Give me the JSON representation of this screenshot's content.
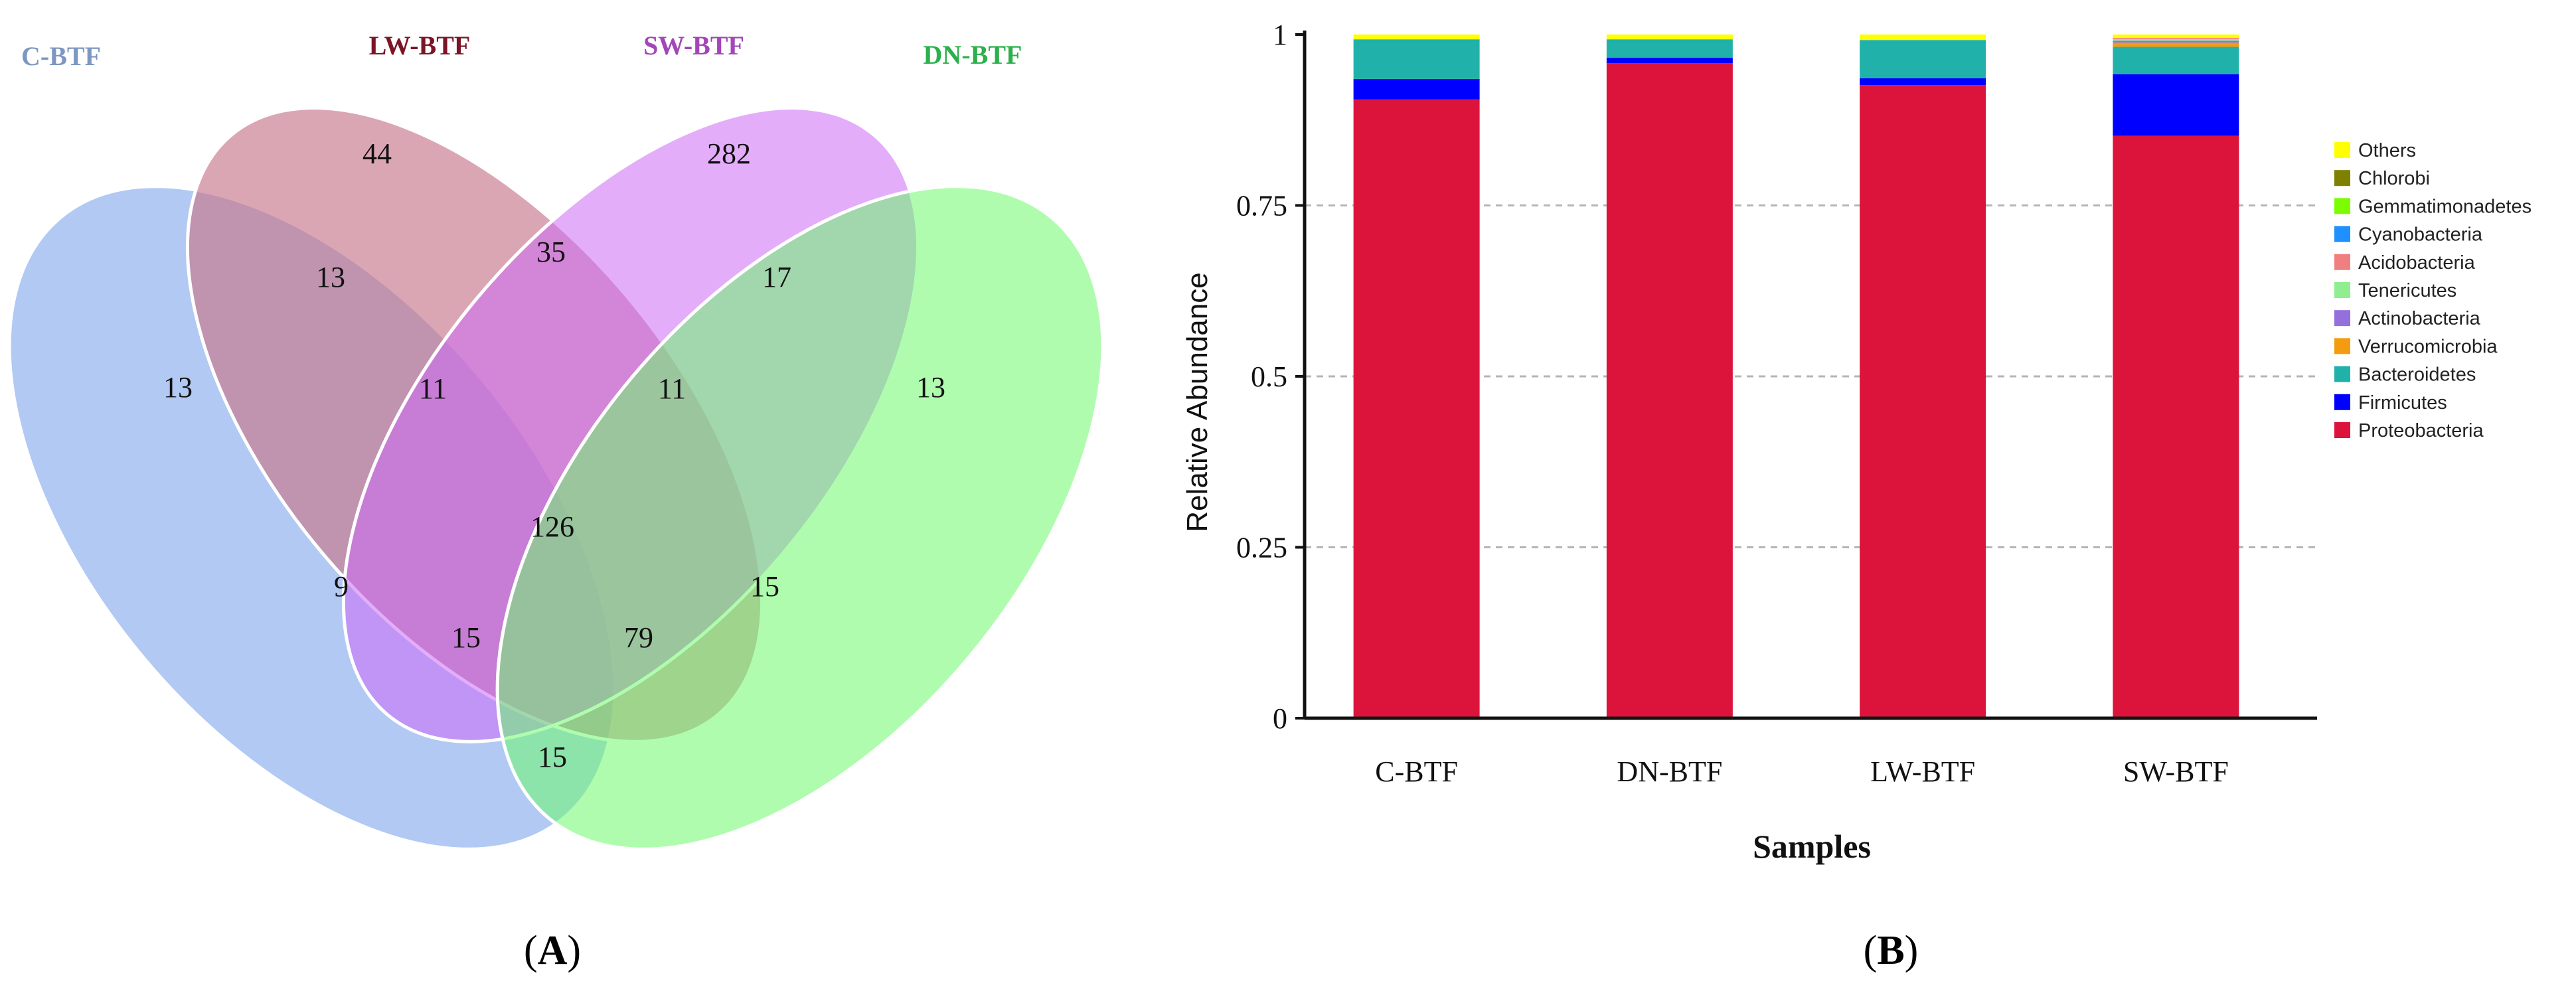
{
  "chart_data": [
    {
      "type": "venn",
      "panel": "A",
      "sets": [
        {
          "name": "C-BTF",
          "color": "#A9C3F2",
          "label_color": "#7D97C2"
        },
        {
          "name": "LW-BTF",
          "color": "#C8768A",
          "label_color": "#7B1525"
        },
        {
          "name": "SW-BTF",
          "color": "#CC6AF5",
          "label_color": "#A246B8"
        },
        {
          "name": "DN-BTF",
          "color": "#6EF96E",
          "label_color": "#2BB04A"
        }
      ],
      "regions": [
        {
          "sets": [
            "LW-BTF"
          ],
          "value": 44
        },
        {
          "sets": [
            "SW-BTF"
          ],
          "value": 282
        },
        {
          "sets": [
            "C-BTF",
            "LW-BTF"
          ],
          "value": 13
        },
        {
          "sets": [
            "LW-BTF",
            "SW-BTF"
          ],
          "value": 35
        },
        {
          "sets": [
            "SW-BTF",
            "DN-BTF"
          ],
          "value": 17
        },
        {
          "sets": [
            "C-BTF"
          ],
          "value": 13
        },
        {
          "sets": [
            "C-BTF",
            "LW-BTF",
            "SW-BTF"
          ],
          "value": 11
        },
        {
          "sets": [
            "LW-BTF",
            "SW-BTF",
            "DN-BTF"
          ],
          "value": 11
        },
        {
          "sets": [
            "DN-BTF"
          ],
          "value": 13
        },
        {
          "sets": [
            "C-BTF",
            "LW-BTF",
            "SW-BTF",
            "DN-BTF"
          ],
          "value": 126
        },
        {
          "sets": [
            "C-BTF",
            "SW-BTF"
          ],
          "value": 9
        },
        {
          "sets": [
            "LW-BTF",
            "DN-BTF"
          ],
          "value": 15
        },
        {
          "sets": [
            "C-BTF",
            "SW-BTF",
            "DN-BTF"
          ],
          "value": 15
        },
        {
          "sets": [
            "C-BTF",
            "LW-BTF",
            "DN-BTF"
          ],
          "value": 79
        },
        {
          "sets": [
            "C-BTF",
            "DN-BTF"
          ],
          "value": 15
        }
      ]
    },
    {
      "type": "bar",
      "stacked": true,
      "panel": "B",
      "title": "",
      "xlabel": "Samples",
      "ylabel": "Relative Abundance",
      "ylim": [
        0,
        1
      ],
      "yticks": [
        {
          "value": 0,
          "label": "0"
        },
        {
          "value": 0.25,
          "label": "0.25"
        },
        {
          "value": 0.5,
          "label": "0.5"
        },
        {
          "value": 0.75,
          "label": "0.75"
        },
        {
          "value": 1,
          "label": "1"
        }
      ],
      "grid": "horizontal dashed",
      "legend_position": "right",
      "categories": [
        "C-BTF",
        "DN-BTF",
        "LW-BTF",
        "SW-BTF"
      ],
      "series": [
        {
          "name": "Proteobacteria",
          "color": "#DC143C",
          "values": [
            0.905,
            0.958,
            0.926,
            0.852
          ]
        },
        {
          "name": "Firmicutes",
          "color": "#0000FF",
          "values": [
            0.03,
            0.008,
            0.01,
            0.09
          ]
        },
        {
          "name": "Bacteroidetes",
          "color": "#20B2AA",
          "values": [
            0.058,
            0.027,
            0.056,
            0.04
          ]
        },
        {
          "name": "Verrucomicrobia",
          "color": "#F39C12",
          "values": [
            0.0,
            0.0,
            0.0,
            0.006
          ]
        },
        {
          "name": "Actinobacteria",
          "color": "#9370DB",
          "values": [
            0.0,
            0.0,
            0.0,
            0.003
          ]
        },
        {
          "name": "Tenericutes",
          "color": "#90EE90",
          "values": [
            0.0,
            0.0,
            0.0,
            0.002
          ]
        },
        {
          "name": "Acidobacteria",
          "color": "#F08080",
          "values": [
            0.0,
            0.0,
            0.0,
            0.002
          ]
        },
        {
          "name": "Cyanobacteria",
          "color": "#1E90FF",
          "values": [
            0.0,
            0.0,
            0.0,
            0.0
          ]
        },
        {
          "name": "Gemmatimonadetes",
          "color": "#7CFC00",
          "values": [
            0.0,
            0.0,
            0.0,
            0.0
          ]
        },
        {
          "name": "Chlorobi",
          "color": "#808000",
          "values": [
            0.0,
            0.0,
            0.0,
            0.0
          ]
        },
        {
          "name": "Others",
          "color": "#FFFF00",
          "values": [
            0.007,
            0.007,
            0.008,
            0.005
          ]
        }
      ]
    }
  ],
  "figure": {
    "panel_a_label": "A",
    "panel_b_label": "B"
  }
}
